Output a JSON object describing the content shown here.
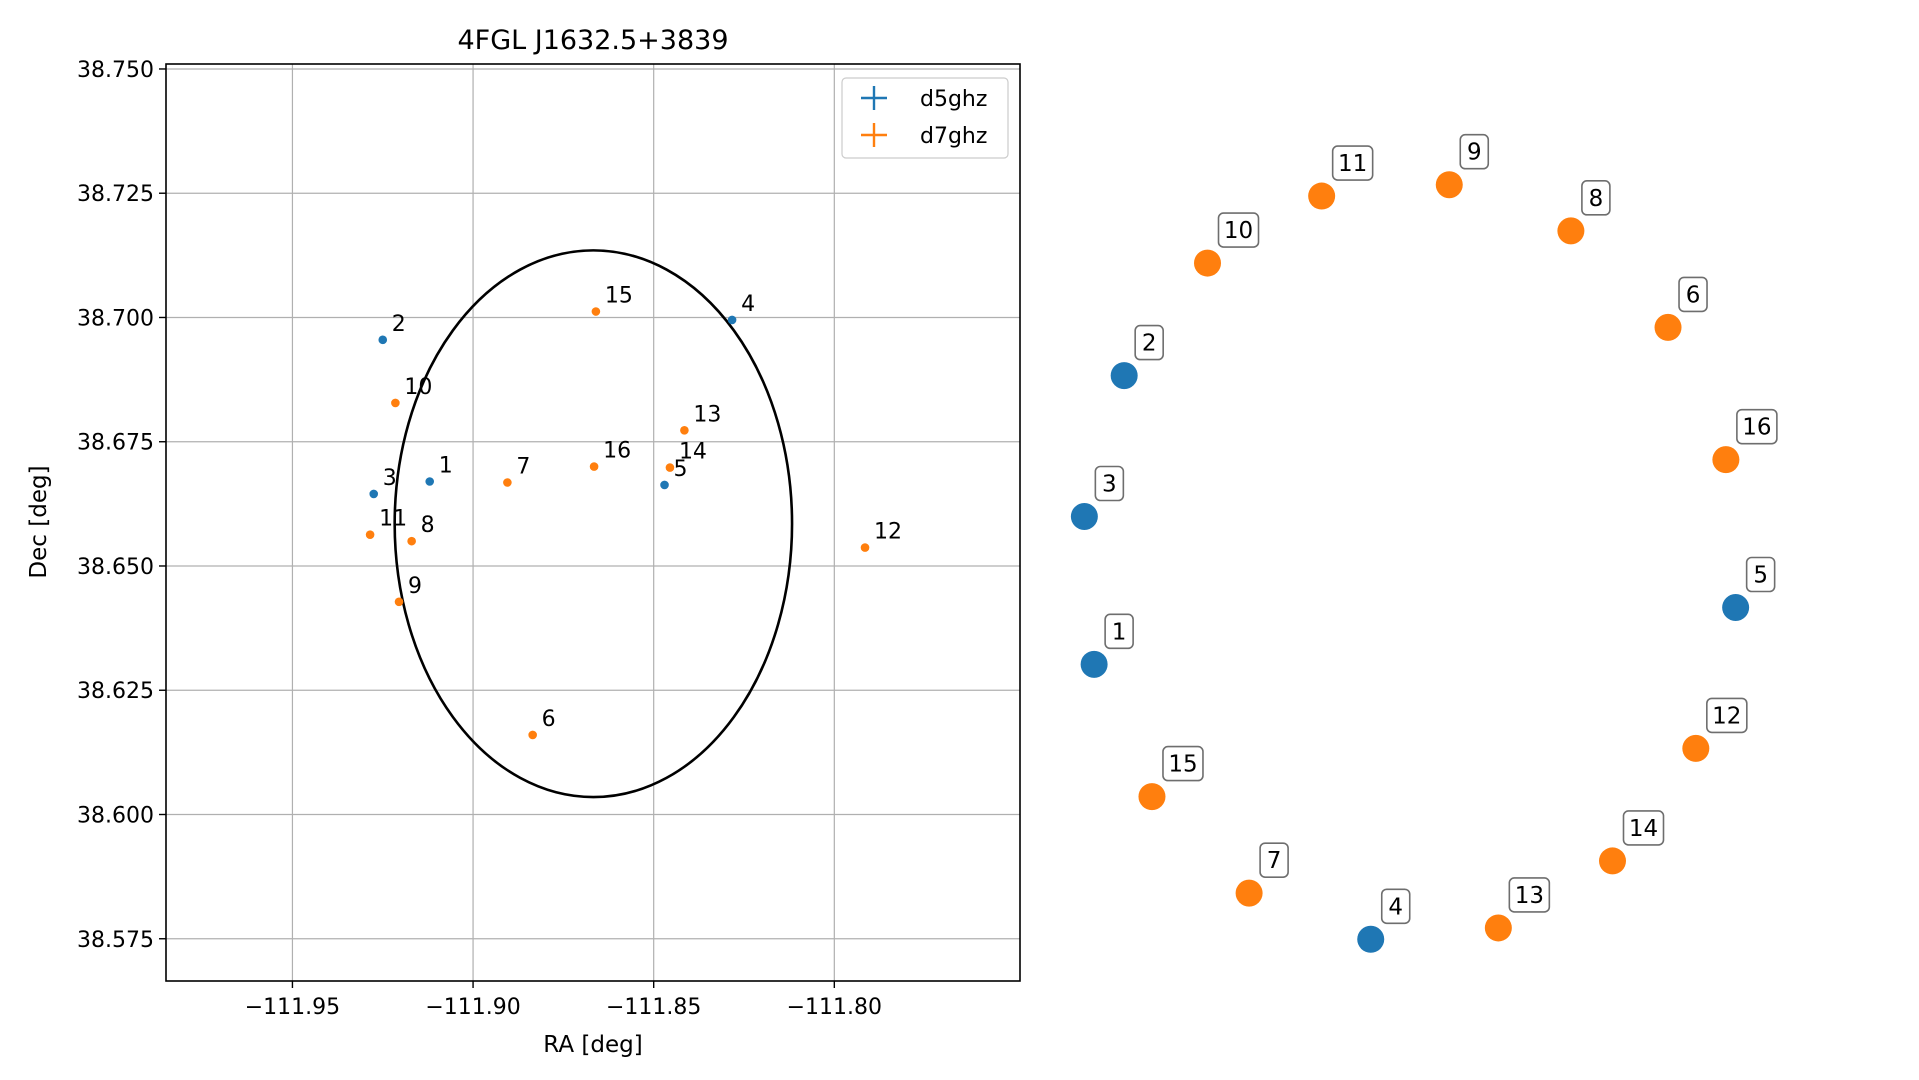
{
  "chart_data": [
    {
      "type": "scatter",
      "title": "4FGL J1632.5+3839",
      "xlabel": "RA [deg]",
      "ylabel": "Dec [deg]",
      "xlim": [
        -111.985,
        -111.7486
      ],
      "ylim": [
        38.5665,
        38.751
      ],
      "x_ticks": [
        -111.95,
        -111.9,
        -111.85,
        -111.8
      ],
      "x_tick_labels": [
        "−111.95",
        "−111.90",
        "−111.85",
        "−111.80"
      ],
      "y_ticks": [
        38.575,
        38.6,
        38.625,
        38.65,
        38.675,
        38.7,
        38.725,
        38.75
      ],
      "y_tick_labels": [
        "38.575",
        "38.600",
        "38.625",
        "38.650",
        "38.675",
        "38.700",
        "38.725",
        "38.750"
      ],
      "grid": true,
      "legend_position": "top-right",
      "circle": {
        "ra": -111.8667,
        "dec": 38.6585,
        "radius": 0.055
      },
      "series": [
        {
          "name": "d5ghz",
          "color": "#1f77b4",
          "points": [
            {
              "label": "1",
              "ra": -111.912,
              "dec": 38.667
            },
            {
              "label": "2",
              "ra": -111.925,
              "dec": 38.6955
            },
            {
              "label": "3",
              "ra": -111.9275,
              "dec": 38.6645
            },
            {
              "label": "4",
              "ra": -111.8283,
              "dec": 38.6995
            },
            {
              "label": "5",
              "ra": -111.847,
              "dec": 38.6663
            }
          ]
        },
        {
          "name": "d7ghz",
          "color": "#ff7f0e",
          "points": [
            {
              "label": "6",
              "ra": -111.8835,
              "dec": 38.616
            },
            {
              "label": "7",
              "ra": -111.8905,
              "dec": 38.6668
            },
            {
              "label": "8",
              "ra": -111.917,
              "dec": 38.655
            },
            {
              "label": "9",
              "ra": -111.9205,
              "dec": 38.6428
            },
            {
              "label": "10",
              "ra": -111.9215,
              "dec": 38.6828
            },
            {
              "label": "11",
              "ra": -111.9285,
              "dec": 38.6563
            },
            {
              "label": "12",
              "ra": -111.7915,
              "dec": 38.6537
            },
            {
              "label": "13",
              "ra": -111.8415,
              "dec": 38.6773
            },
            {
              "label": "14",
              "ra": -111.8455,
              "dec": 38.6698
            },
            {
              "label": "15",
              "ra": -111.866,
              "dec": 38.7012
            },
            {
              "label": "16",
              "ra": -111.8665,
              "dec": 38.67
            }
          ]
        }
      ]
    },
    {
      "type": "scatter",
      "title": "",
      "axes_visible": false,
      "points": [
        {
          "label": "1",
          "series": "d5ghz"
        },
        {
          "label": "2",
          "series": "d5ghz"
        },
        {
          "label": "3",
          "series": "d5ghz"
        },
        {
          "label": "4",
          "series": "d5ghz"
        },
        {
          "label": "5",
          "series": "d5ghz"
        },
        {
          "label": "6",
          "series": "d7ghz"
        },
        {
          "label": "7",
          "series": "d7ghz"
        },
        {
          "label": "8",
          "series": "d7ghz"
        },
        {
          "label": "9",
          "series": "d7ghz"
        },
        {
          "label": "10",
          "series": "d7ghz"
        },
        {
          "label": "11",
          "series": "d7ghz"
        },
        {
          "label": "12",
          "series": "d7ghz"
        },
        {
          "label": "13",
          "series": "d7ghz"
        },
        {
          "label": "14",
          "series": "d7ghz"
        },
        {
          "label": "15",
          "series": "d7ghz"
        },
        {
          "label": "16",
          "series": "d7ghz"
        }
      ]
    }
  ]
}
